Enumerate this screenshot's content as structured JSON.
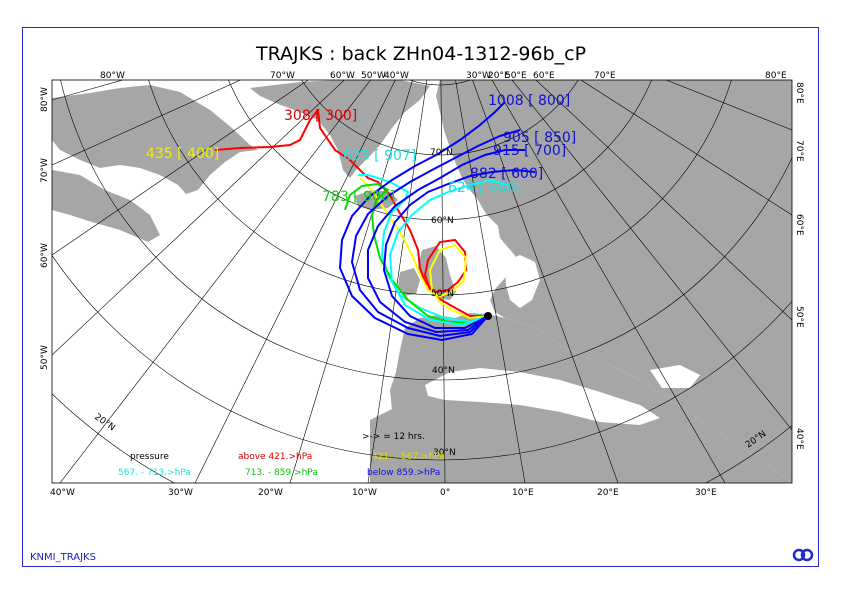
{
  "title": "TRAJKS : back ZHn04-1312-96b_cP",
  "footer_label": "KNMI_TRAJKS",
  "logo_icon": "knmi-logo-icon",
  "colors": {
    "land": "#a6a6a6",
    "frame": "#2a2ad0",
    "red": "#ff0000",
    "yellow": "#ffff00",
    "cyan": "#00ffff",
    "green": "#00e000",
    "blue": "#0000ff",
    "label_red": "#dd0000",
    "label_yellow": "#f0f000",
    "label_cyan": "#20e0e0",
    "label_green": "#10d010",
    "label_blue": "#1010d0"
  },
  "graticule": {
    "top_lon_labels": [
      "80°W",
      "70°W",
      "60°W",
      "50°W",
      "40°W",
      "30°W",
      "20°E",
      "50°E",
      "60°E",
      "70°E",
      "80°E"
    ],
    "top_lon_labels_extra": [
      "30°W"
    ],
    "bottom_lon_labels": [
      "40°W",
      "30°W",
      "20°W",
      "10°W",
      "0°",
      "10°E",
      "20°E",
      "30°E"
    ],
    "left_lat_labels": [
      "80°W",
      "70°W",
      "60°W",
      "50°W"
    ],
    "right_lat_labels": [
      "80°E",
      "70°E",
      "60°E",
      "50°E",
      "40°E"
    ],
    "inner_lat_labels": [
      "70°N",
      "60°N",
      "50°N",
      "40°N",
      "30°N"
    ],
    "corner_labels": [
      "20°N",
      "20°N"
    ]
  },
  "trajectory_labels": [
    {
      "text": "308 [ 300]",
      "color": "red"
    },
    {
      "text": "435 [ 400]",
      "color": "yellow"
    },
    {
      "text": "623 [ 907]",
      "color": "cyan"
    },
    {
      "text": "783 [ 900]",
      "color": "green"
    },
    {
      "text": "1008 [ 800]",
      "color": "blue"
    },
    {
      "text": "905 [ 850]",
      "color": "blue"
    },
    {
      "text": "915 [ 700]",
      "color": "blue"
    },
    {
      "text": "882 [ 600]",
      "color": "blue"
    },
    {
      "text": "624 [ 500]",
      "color": "cyan"
    }
  ],
  "legend": {
    "step": ">-> = 12 hrs.",
    "pressure": "pressure",
    "above": "above   421.>hPa",
    "mid1": "421. -   567.>hPa",
    "mid2": "567. -   713.>hPa",
    "mid3": "713. -   859.>hPa",
    "below": "below   859.>hPa"
  }
}
